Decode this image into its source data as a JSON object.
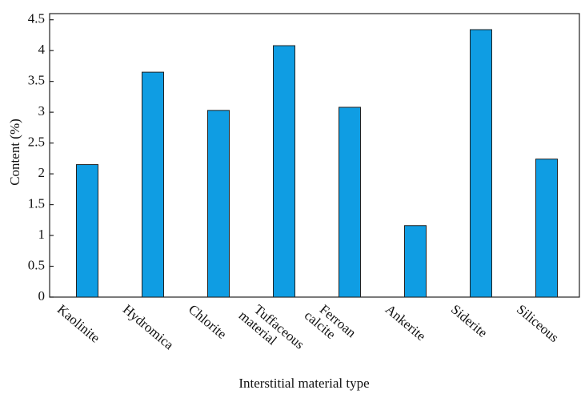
{
  "chart_data": {
    "type": "bar",
    "x_label": "Interstitial material type",
    "y_label": "Content (%)",
    "categories": [
      "Kaolinite",
      "Hydromica",
      "Chlorite",
      "Tuffaceous material",
      "Ferroan calcite",
      "Ankerite",
      "Siderite",
      "Siliceous"
    ],
    "values": [
      2.15,
      3.65,
      3.03,
      4.08,
      3.08,
      1.16,
      4.34,
      2.24
    ],
    "color": "#0f9de3",
    "ylim": [
      0,
      4.6
    ],
    "yticks": [
      0,
      0.5,
      1,
      1.5,
      2,
      2.5,
      3,
      3.5,
      4,
      4.5
    ],
    "grid": false
  }
}
